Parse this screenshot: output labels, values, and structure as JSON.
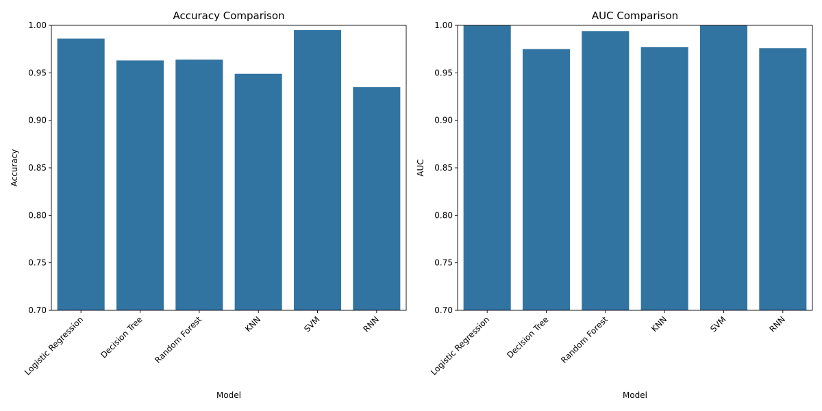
{
  "chart_data": [
    {
      "type": "bar",
      "title": "Accuracy Comparison",
      "xlabel": "Model",
      "ylabel": "Accuracy",
      "categories": [
        "Logistic Regression",
        "Decision Tree",
        "Random Forest",
        "KNN",
        "SVM",
        "RNN"
      ],
      "values": [
        0.986,
        0.963,
        0.964,
        0.949,
        0.995,
        0.935
      ],
      "ylim": [
        0.7,
        1.0
      ],
      "yticks": [
        "0.70",
        "0.75",
        "0.80",
        "0.85",
        "0.90",
        "0.95",
        "1.00"
      ],
      "bar_color": "#3274a1",
      "grid": false
    },
    {
      "type": "bar",
      "title": "AUC Comparison",
      "xlabel": "Model",
      "ylabel": "AUC",
      "categories": [
        "Logistic Regression",
        "Decision Tree",
        "Random Forest",
        "KNN",
        "SVM",
        "RNN"
      ],
      "values": [
        1.0,
        0.975,
        0.994,
        0.977,
        1.0,
        0.976
      ],
      "ylim": [
        0.7,
        1.0
      ],
      "yticks": [
        "0.70",
        "0.75",
        "0.80",
        "0.85",
        "0.90",
        "0.95",
        "1.00"
      ],
      "bar_color": "#3274a1",
      "grid": false
    }
  ]
}
